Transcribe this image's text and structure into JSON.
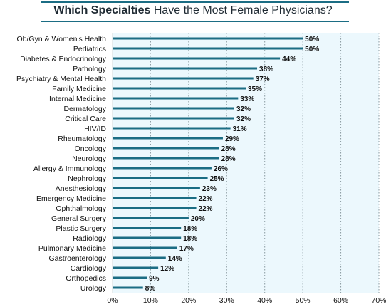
{
  "title": {
    "bold": "Which Specialties",
    "rest": " Have the Most Female Physicians?"
  },
  "colors": {
    "bar": "#1b6d84",
    "plot_bg": "#ecf8fd",
    "grid": "#8a9aa0"
  },
  "chart_data": {
    "type": "bar",
    "orientation": "horizontal",
    "title": "Which Specialties Have the Most Female Physicians?",
    "categories": [
      "Ob/Gyn & Women's Health",
      "Pediatrics",
      "Diabetes & Endocrinology",
      "Pathology",
      "Psychiatry & Mental Health",
      "Family Medicine",
      "Internal Medicine",
      "Dermatology",
      "Critical Care",
      "HIV/ID",
      "Rheumatology",
      "Oncology",
      "Neurology",
      "Allergy & Immunology",
      "Nephrology",
      "Anesthesiology",
      "Emergency Medicine",
      "Ophthalmology",
      "General Surgery",
      "Plastic Surgery",
      "Radiology",
      "Pulmonary Medicine",
      "Gastroenterology",
      "Cardiology",
      "Orthopedics",
      "Urology"
    ],
    "values": [
      50,
      50,
      44,
      38,
      37,
      35,
      33,
      32,
      32,
      31,
      29,
      28,
      28,
      26,
      25,
      23,
      22,
      22,
      20,
      18,
      18,
      17,
      14,
      12,
      9,
      8
    ],
    "value_labels": [
      "50%",
      "50%",
      "44%",
      "38%",
      "37%",
      "35%",
      "33%",
      "32%",
      "32%",
      "31%",
      "29%",
      "28%",
      "28%",
      "26%",
      "25%",
      "23%",
      "22%",
      "22%",
      "20%",
      "18%",
      "18%",
      "17%",
      "14%",
      "12%",
      "9%",
      "8%"
    ],
    "xticks": [
      0,
      10,
      20,
      30,
      40,
      50,
      60,
      70
    ],
    "xtick_labels": [
      "0%",
      "10%",
      "20%",
      "30%",
      "40%",
      "50%",
      "60%",
      "70%"
    ],
    "xlim": [
      0,
      70
    ],
    "grid": true
  }
}
